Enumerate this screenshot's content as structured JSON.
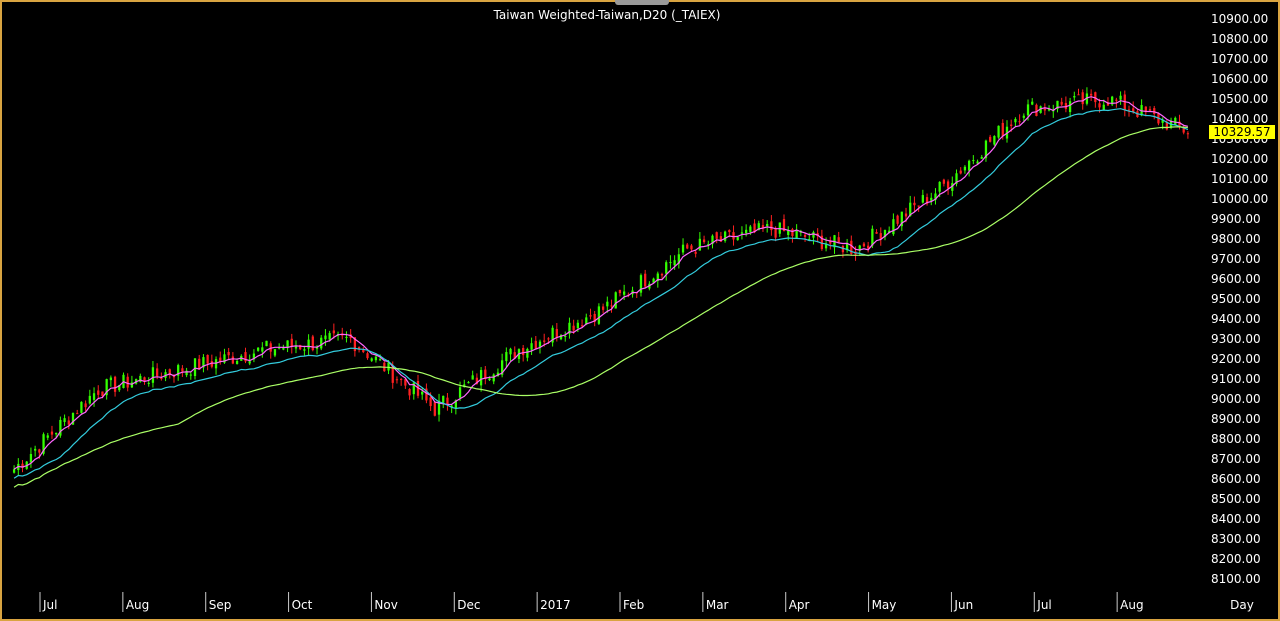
{
  "window": {
    "title": "Taiwan Weighted-Taiwan,D20 (_TAIEX)"
  },
  "colors": {
    "background": "#000000",
    "frame": "#d9a441",
    "up": "#33ff00",
    "down": "#ff2020",
    "ma_fast": "#ff66ff",
    "ma_mid": "#33ccdd",
    "ma_slow": "#aaff66",
    "last_bg": "#ffff00",
    "last_fg": "#000000"
  },
  "chart_data": {
    "type": "candlestick",
    "title": "Taiwan Weighted-Taiwan,D20 (_TAIEX)",
    "xlabel": "Day",
    "x_ticks": [
      "Jul",
      "Aug",
      "Sep",
      "Oct",
      "Nov",
      "Dec",
      "2017",
      "Feb",
      "Mar",
      "Apr",
      "May",
      "Jun",
      "Jul",
      "Aug"
    ],
    "y_ticks": [
      "10900.00",
      "10800.00",
      "10700.00",
      "10600.00",
      "10500.00",
      "10400.00",
      "10300.00",
      "10200.00",
      "10100.00",
      "10000.00",
      "9900.00",
      "9800.00",
      "9700.00",
      "9600.00",
      "9500.00",
      "9400.00",
      "9300.00",
      "9200.00",
      "9100.00",
      "9000.00",
      "8900.00",
      "8800.00",
      "8700.00",
      "8600.00",
      "8500.00",
      "8400.00",
      "8300.00",
      "8200.00",
      "8100.00"
    ],
    "ylim": [
      8050,
      10950
    ],
    "last_price": "10329.57",
    "close_series": [
      {
        "period": "Jul",
        "start": 8650,
        "end": 9050
      },
      {
        "period": "Aug",
        "start": 9050,
        "end": 9150
      },
      {
        "period": "Sep",
        "start": 9150,
        "end": 9250
      },
      {
        "period": "Oct",
        "start": 9250,
        "end": 9300
      },
      {
        "period": "Nov",
        "start": 9300,
        "end": 8950
      },
      {
        "period": "Dec",
        "start": 8950,
        "end": 9250
      },
      {
        "period": "2017",
        "start": 9250,
        "end": 9450
      },
      {
        "period": "Feb",
        "start": 9450,
        "end": 9750
      },
      {
        "period": "Mar",
        "start": 9750,
        "end": 9850
      },
      {
        "period": "Apr",
        "start": 9850,
        "end": 9750
      },
      {
        "period": "May",
        "start": 9750,
        "end": 10050
      },
      {
        "period": "Jun",
        "start": 10050,
        "end": 10450
      },
      {
        "period": "Jul",
        "start": 10450,
        "end": 10500
      },
      {
        "period": "Aug",
        "start": 10500,
        "end": 10330
      }
    ],
    "moving_averages": [
      {
        "name": "MA fast",
        "color": "#ff66ff"
      },
      {
        "name": "MA mid",
        "color": "#33ccdd"
      },
      {
        "name": "MA slow",
        "color": "#aaff66"
      }
    ],
    "grid": false
  }
}
